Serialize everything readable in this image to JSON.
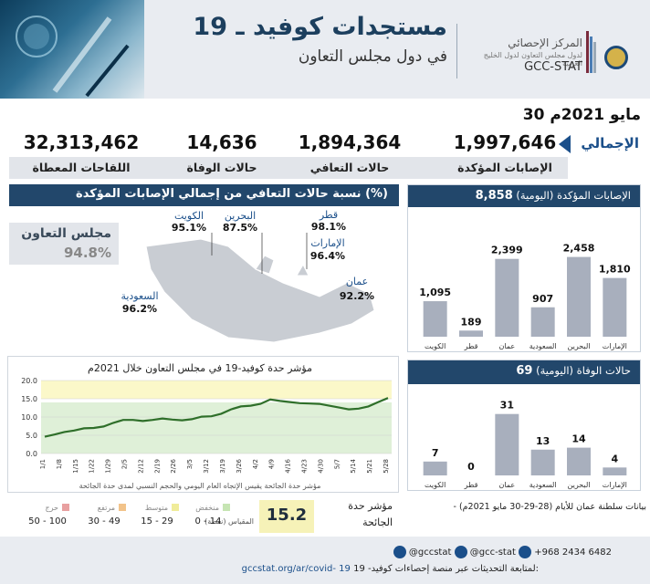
{
  "header": {
    "title": "مستجدات كوفيد ـ 19",
    "subtitle": "في دول مجلس التعاون",
    "org_name_ar": "المركز الإحصائي",
    "org_tagline_ar": "لدول مجلس التعاون لدول الخليج العربية",
    "org_name_en": "GCC-STAT"
  },
  "date": "30 مايو 2021م",
  "totals": {
    "label": "الإجمالي",
    "items": [
      {
        "label": "الإصابات المؤكدة",
        "value": "1,997,646"
      },
      {
        "label": "حالات التعافي",
        "value": "1,894,364"
      },
      {
        "label": "حالات الوفاة",
        "value": "14,636"
      },
      {
        "label": "اللقاحات المعطاة",
        "value": "32,313,462"
      }
    ]
  },
  "recovery": {
    "title": "نسبة حالات التعافي من إجمالي الإصابات المؤكدة (%)",
    "gcc_label": "مجلس التعاون",
    "gcc_value": "94.8%",
    "countries": [
      {
        "name": "الكويت",
        "value": "95.1%"
      },
      {
        "name": "البحرين",
        "value": "87.5%"
      },
      {
        "name": "قطر",
        "value": "98.1%"
      },
      {
        "name": "الإمارات",
        "value": "96.4%"
      },
      {
        "name": "عمان",
        "value": "92.2%"
      },
      {
        "name": "السعودية",
        "value": "96.2%"
      }
    ]
  },
  "chart_data": [
    {
      "type": "bar",
      "title": "الإصابات المؤكدة (اليومية)",
      "total": "8,858",
      "categories": [
        "الكويت",
        "قطر",
        "عمان",
        "السعودية",
        "البحرين",
        "الإمارات"
      ],
      "values": [
        1095,
        189,
        2399,
        907,
        2458,
        1810
      ],
      "value_labels": [
        "1,095",
        "189",
        "2,399",
        "907",
        "2,458",
        "1,810"
      ],
      "ylim": [
        0,
        2700
      ],
      "color": "#a8afbd"
    },
    {
      "type": "bar",
      "title": "حالات الوفاة (اليومية)",
      "total": "69",
      "categories": [
        "الكويت",
        "قطر",
        "عمان",
        "السعودية",
        "البحرين",
        "الإمارات"
      ],
      "values": [
        7,
        0,
        31,
        13,
        14,
        4
      ],
      "value_labels": [
        "7",
        "0",
        "31",
        "13",
        "14",
        "4"
      ],
      "ylim": [
        0,
        35
      ],
      "color": "#a8afbd"
    },
    {
      "type": "line",
      "title": "مؤشر حدة كوفيد-19 في مجلس التعاون خلال 2021م",
      "xlabel": "مؤشر حدة الجائحة يقيس الإتجاه العام اليومي والحجم النسبي لمدى حدة الجائحة",
      "ylim": [
        0,
        20
      ],
      "yticks": [
        "0.0",
        "5.0",
        "10.0",
        "15.0",
        "20.0"
      ],
      "xticks": [
        "1/1",
        "1/8",
        "1/15",
        "1/22",
        "1/29",
        "2/5",
        "2/12",
        "2/19",
        "2/26",
        "3/5",
        "3/12",
        "3/19",
        "3/26",
        "4/2",
        "4/9",
        "4/16",
        "4/23",
        "4/30",
        "5/7",
        "5/14",
        "5/21",
        "5/28"
      ],
      "series": [
        {
          "values": [
            4.6,
            5.2,
            5.9,
            6.3,
            6.9,
            7.0,
            7.4,
            8.4,
            9.2,
            9.2,
            8.9,
            9.2,
            9.6,
            9.3,
            9.1,
            9.4,
            10.1,
            10.2,
            10.9,
            12.1,
            12.9,
            13.1,
            13.6,
            14.8,
            14.4,
            14.1,
            13.8,
            13.7,
            13.6,
            13.1,
            12.6,
            12.1,
            12.3,
            12.9,
            14.1,
            15.2
          ],
          "color": "#2f6f2a"
        }
      ],
      "bands": [
        {
          "from": 0,
          "to": 14,
          "color": "#dff0d8"
        },
        {
          "from": 15,
          "to": 20,
          "color": "#fbf8c9"
        }
      ]
    }
  ],
  "severity": {
    "scale_label": "المقياس (نقطة)",
    "levels": [
      {
        "name": "منخفض",
        "range": "0 - 14",
        "color": "#c6e5b3"
      },
      {
        "name": "متوسط",
        "range": "15 - 29",
        "color": "#f0ec9a"
      },
      {
        "name": "مرتفع",
        "range": "30 - 49",
        "color": "#f2c38a"
      },
      {
        "name": "حرج",
        "range": "50 - 100",
        "color": "#e8a0a0"
      }
    ],
    "index_label": "مؤشر حدة الجائحة",
    "index_value": "15.2"
  },
  "oman_note": "- بيانات سلطنة عمان للأيام (28-29-30 مايو 2021م)",
  "footer": {
    "handle": "@gccstat",
    "handle2": "@gcc-stat",
    "phone": "+968 2434 6482",
    "follow_text": "لمتابعة التحديثات عبر منصة إحصاءات كوفيد- 19:",
    "url": "gccstat.org/ar/covid- 19"
  }
}
